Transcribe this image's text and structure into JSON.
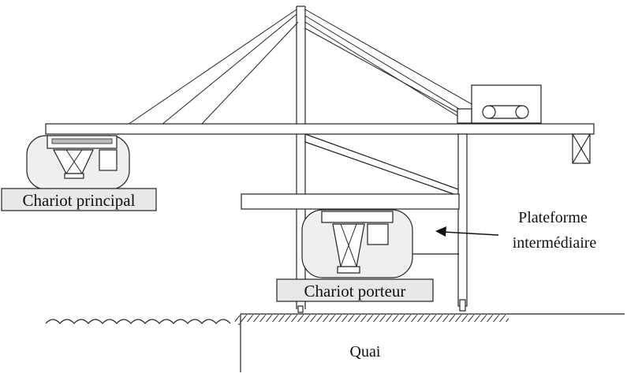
{
  "diagram": {
    "labels": {
      "main_trolley": "Chariot principal",
      "carrier_trolley": "Chariot porteur",
      "platform_line1": "Plateforme",
      "platform_line2": "intermédiaire",
      "quay": "Quai"
    },
    "colors": {
      "stroke": "#222222",
      "label_fill": "#e8e8e8",
      "trolley_fill": "#efefef",
      "background": "#ffffff"
    }
  }
}
